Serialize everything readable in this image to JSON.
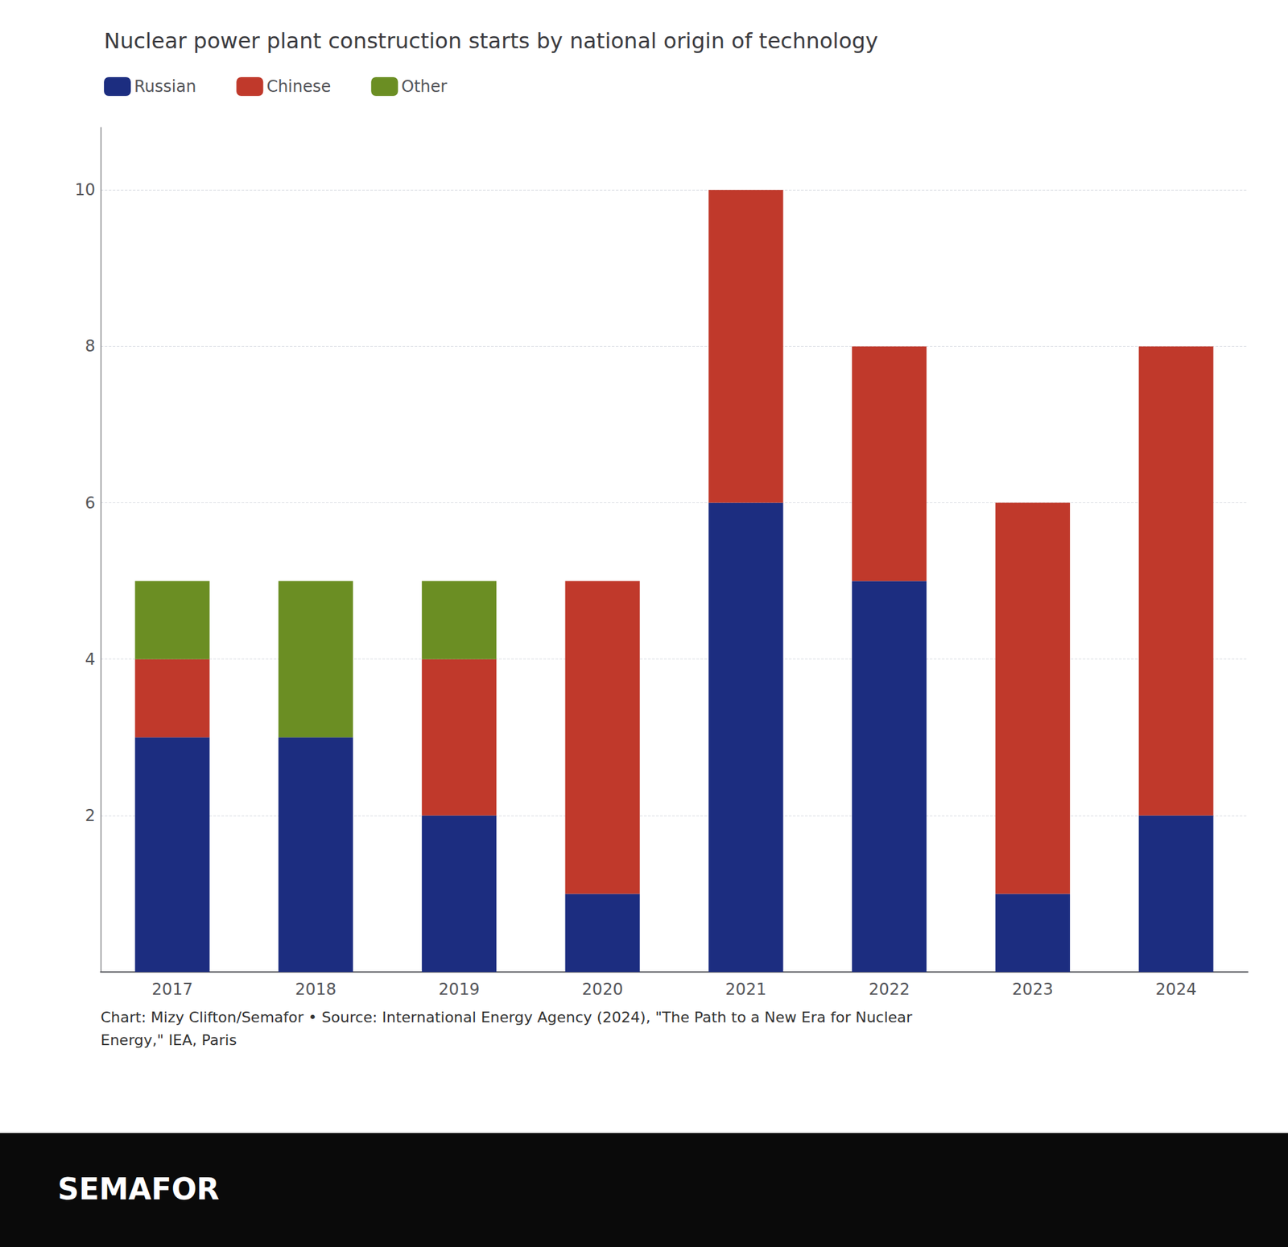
{
  "chart_data": {
    "type": "bar",
    "title": "Nuclear power plant construction starts by national origin of technology",
    "categories": [
      "2017",
      "2018",
      "2019",
      "2020",
      "2021",
      "2022",
      "2023",
      "2024"
    ],
    "series": [
      {
        "name": "Russian",
        "color": "#1c2d80",
        "values": [
          3,
          3,
          2,
          1,
          6,
          5,
          1,
          2
        ]
      },
      {
        "name": "Chinese",
        "color": "#c0392b",
        "values": [
          1,
          0,
          2,
          4,
          4,
          3,
          5,
          6
        ]
      },
      {
        "name": "Other",
        "color": "#6b8e23",
        "values": [
          1,
          2,
          1,
          0,
          0,
          0,
          0,
          0
        ]
      }
    ],
    "stacked": true,
    "ylim": [
      0,
      10.8
    ],
    "yticks": [
      2,
      4,
      6,
      8,
      10
    ],
    "grid": true,
    "legend": "upper left",
    "annotations": [
      "Chart: Mizy Clifton/Semafor • Source: International Energy Agency (2024), \"The Path to a New Era for Nuclear\nEnergy,\" IEA, Paris",
      "SEMAFOR"
    ]
  }
}
